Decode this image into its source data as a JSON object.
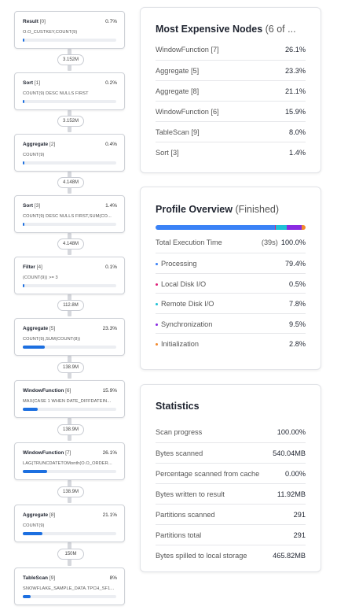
{
  "tree": {
    "nodes": [
      {
        "name": "Result",
        "id": "[0]",
        "pct": "0.7%",
        "pct_value": 0.7,
        "detail": "O.O_CUSTKEY,COUNT(9)"
      },
      {
        "name": "Sort",
        "id": "[1]",
        "pct": "0.2%",
        "pct_value": 0.2,
        "detail": "COUNT(9) DESC NULLS FIRST"
      },
      {
        "name": "Aggregate",
        "id": "[2]",
        "pct": "0.4%",
        "pct_value": 0.4,
        "detail": "COUNT(9)"
      },
      {
        "name": "Sort",
        "id": "[3]",
        "pct": "1.4%",
        "pct_value": 1.4,
        "detail": "COUNT(9) DESC NULLS FIRST,SUM(CO..."
      },
      {
        "name": "Filter",
        "id": "[4]",
        "pct": "0.1%",
        "pct_value": 0.1,
        "detail": "(COUNT(9)) >= 3"
      },
      {
        "name": "Aggregate",
        "id": "[5]",
        "pct": "23.3%",
        "pct_value": 23.3,
        "detail": "COUNT(9),SUM(COUNT(8))"
      },
      {
        "name": "WindowFunction",
        "id": "[6]",
        "pct": "15.9%",
        "pct_value": 15.9,
        "detail": "MAX(CASE 1 WHEN DATE_DIFFDATEIN..."
      },
      {
        "name": "WindowFunction",
        "id": "[7]",
        "pct": "26.1%",
        "pct_value": 26.1,
        "detail": "LAG(TRUNCDATETOMonth(O.O_ORDER..."
      },
      {
        "name": "Aggregate",
        "id": "[8]",
        "pct": "21.1%",
        "pct_value": 21.1,
        "detail": "COUNT(9)"
      },
      {
        "name": "TableScan",
        "id": "[9]",
        "pct": "8%",
        "pct_value": 8,
        "detail": "SNOWFLAKE_SAMPLE_DATA.TPCH_SF1..."
      }
    ],
    "edges": [
      "3.152M",
      "3.152M",
      "4.148M",
      "4.148M",
      "112.8M",
      "138.9M",
      "138.9M",
      "138.9M",
      "150M"
    ]
  },
  "expensive": {
    "title": "Most Expensive Nodes",
    "suffix": "(6 of ...",
    "rows": [
      {
        "label": "WindowFunction [7]",
        "value": "26.1%"
      },
      {
        "label": "Aggregate [5]",
        "value": "23.3%"
      },
      {
        "label": "Aggregate [8]",
        "value": "21.1%"
      },
      {
        "label": "WindowFunction [6]",
        "value": "15.9%"
      },
      {
        "label": "TableScan [9]",
        "value": "8.0%"
      },
      {
        "label": "Sort [3]",
        "value": "1.4%"
      }
    ]
  },
  "profile": {
    "title": "Profile Overview",
    "status": "(Finished)",
    "total": {
      "label": "Total Execution Time",
      "time": "(39s)",
      "value": "100.0%"
    },
    "rows": [
      {
        "label": "Processing",
        "value": "79.4%",
        "share": 79.4,
        "color": "#3b82f6"
      },
      {
        "label": "Local Disk I/O",
        "value": "0.5%",
        "share": 0.5,
        "color": "#e0227a"
      },
      {
        "label": "Remote Disk I/O",
        "value": "7.8%",
        "share": 7.8,
        "color": "#1fc0d6"
      },
      {
        "label": "Synchronization",
        "value": "9.5%",
        "share": 9.5,
        "color": "#8a2be2"
      },
      {
        "label": "Initialization",
        "value": "2.8%",
        "share": 2.8,
        "color": "#f28a2e"
      }
    ]
  },
  "statistics": {
    "title": "Statistics",
    "rows": [
      {
        "label": "Scan progress",
        "value": "100.00%"
      },
      {
        "label": "Bytes scanned",
        "value": "540.04MB"
      },
      {
        "label": "Percentage scanned from cache",
        "value": "0.00%"
      },
      {
        "label": "Bytes written to result",
        "value": "11.92MB"
      },
      {
        "label": "Partitions scanned",
        "value": "291"
      },
      {
        "label": "Partitions total",
        "value": "291"
      },
      {
        "label": "Bytes spilled to local storage",
        "value": "465.82MB"
      }
    ]
  },
  "colors": {
    "accent": "#1c6fe0"
  }
}
